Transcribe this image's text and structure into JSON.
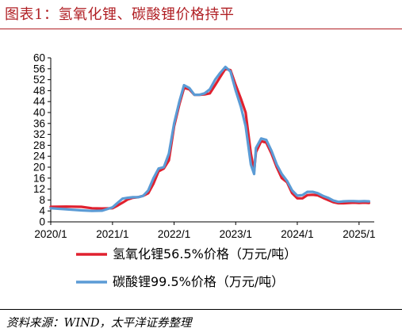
{
  "header": {
    "title": "图表1：氢氧化锂、碳酸锂价格持平"
  },
  "source": "资料来源：WIND，太平洋证券整理",
  "chart_data": {
    "type": "line",
    "title": "",
    "xlabel": "",
    "ylabel": "",
    "ylim": [
      0,
      60
    ],
    "y_ticks": [
      0,
      4,
      8,
      12,
      16,
      20,
      24,
      28,
      32,
      36,
      40,
      44,
      48,
      52,
      56,
      60
    ],
    "y_tick_labels": [
      "0",
      "4",
      "8",
      "12",
      "16",
      "20",
      "24",
      "28",
      "32",
      "36",
      "40",
      "44",
      "48",
      "52",
      "56",
      "60"
    ],
    "xlim": [
      "2020-01",
      "2025-04"
    ],
    "x_ticks": [
      "2020-01",
      "2021-01",
      "2022-01",
      "2023-01",
      "2024-01",
      "2025-01"
    ],
    "x_tick_labels": [
      "2020/1",
      "2021/1",
      "2022/1",
      "2023/1",
      "2024/1",
      "2025/1"
    ],
    "grid": false,
    "legend_position": "bottom",
    "series": [
      {
        "name": "氢氧化锂56.5%价格（万元/吨）",
        "color": "#e0212f",
        "points": [
          [
            "2020-01-01",
            5.5
          ],
          [
            "2020-04-01",
            5.6
          ],
          [
            "2020-07-01",
            5.5
          ],
          [
            "2020-09-01",
            5.0
          ],
          [
            "2020-11-01",
            4.9
          ],
          [
            "2021-01-01",
            5.0
          ],
          [
            "2021-02-01",
            6.0
          ],
          [
            "2021-03-01",
            7.0
          ],
          [
            "2021-04-01",
            8.2
          ],
          [
            "2021-05-01",
            8.8
          ],
          [
            "2021-06-01",
            9.0
          ],
          [
            "2021-07-01",
            9.5
          ],
          [
            "2021-08-01",
            10.5
          ],
          [
            "2021-09-01",
            14.0
          ],
          [
            "2021-10-01",
            18.5
          ],
          [
            "2021-11-01",
            19.5
          ],
          [
            "2021-12-01",
            22.5
          ],
          [
            "2022-01-01",
            35.0
          ],
          [
            "2022-02-01",
            43.0
          ],
          [
            "2022-03-01",
            49.0
          ],
          [
            "2022-04-01",
            48.5
          ],
          [
            "2022-05-01",
            46.5
          ],
          [
            "2022-06-01",
            46.5
          ],
          [
            "2022-07-01",
            46.6
          ],
          [
            "2022-08-01",
            47.0
          ],
          [
            "2022-09-01",
            50.0
          ],
          [
            "2022-10-01",
            53.0
          ],
          [
            "2022-11-01",
            56.0
          ],
          [
            "2022-12-01",
            55.5
          ],
          [
            "2023-01-01",
            50.0
          ],
          [
            "2023-02-01",
            45.0
          ],
          [
            "2023-03-01",
            40.0
          ],
          [
            "2023-04-01",
            25.0
          ],
          [
            "2023-04-20",
            18.5
          ],
          [
            "2023-05-01",
            25.5
          ],
          [
            "2023-06-01",
            29.5
          ],
          [
            "2023-07-01",
            29.0
          ],
          [
            "2023-08-01",
            25.0
          ],
          [
            "2023-09-01",
            20.0
          ],
          [
            "2023-10-01",
            16.0
          ],
          [
            "2023-11-01",
            14.5
          ],
          [
            "2023-12-01",
            10.5
          ],
          [
            "2024-01-01",
            8.6
          ],
          [
            "2024-02-01",
            8.6
          ],
          [
            "2024-03-01",
            9.8
          ],
          [
            "2024-04-01",
            9.9
          ],
          [
            "2024-05-01",
            9.7
          ],
          [
            "2024-06-01",
            8.8
          ],
          [
            "2024-07-01",
            8.0
          ],
          [
            "2024-08-01",
            7.2
          ],
          [
            "2024-09-01",
            6.8
          ],
          [
            "2024-10-01",
            6.8
          ],
          [
            "2024-11-01",
            6.9
          ],
          [
            "2024-12-01",
            7.0
          ],
          [
            "2025-01-01",
            6.9
          ],
          [
            "2025-02-01",
            7.0
          ],
          [
            "2025-03-01",
            6.9
          ]
        ]
      },
      {
        "name": "碳酸锂99.5%价格（万元/吨）",
        "color": "#5b9bd5",
        "points": [
          [
            "2020-01-01",
            5.0
          ],
          [
            "2020-04-01",
            4.6
          ],
          [
            "2020-07-01",
            4.2
          ],
          [
            "2020-09-01",
            4.0
          ],
          [
            "2020-11-01",
            4.1
          ],
          [
            "2021-01-01",
            5.3
          ],
          [
            "2021-02-01",
            7.0
          ],
          [
            "2021-03-01",
            8.5
          ],
          [
            "2021-04-01",
            8.8
          ],
          [
            "2021-05-01",
            9.0
          ],
          [
            "2021-06-01",
            9.0
          ],
          [
            "2021-07-01",
            9.5
          ],
          [
            "2021-08-01",
            11.5
          ],
          [
            "2021-09-01",
            16.0
          ],
          [
            "2021-10-01",
            19.5
          ],
          [
            "2021-11-01",
            20.0
          ],
          [
            "2021-12-01",
            25.0
          ],
          [
            "2022-01-01",
            36.0
          ],
          [
            "2022-02-01",
            44.0
          ],
          [
            "2022-03-01",
            50.0
          ],
          [
            "2022-04-01",
            49.0
          ],
          [
            "2022-05-01",
            46.5
          ],
          [
            "2022-06-01",
            46.5
          ],
          [
            "2022-07-01",
            47.0
          ],
          [
            "2022-08-01",
            48.5
          ],
          [
            "2022-09-01",
            52.0
          ],
          [
            "2022-10-01",
            54.5
          ],
          [
            "2022-11-01",
            56.7
          ],
          [
            "2022-12-01",
            55.0
          ],
          [
            "2023-01-01",
            48.0
          ],
          [
            "2023-02-01",
            42.0
          ],
          [
            "2023-03-01",
            35.0
          ],
          [
            "2023-04-01",
            21.0
          ],
          [
            "2023-04-20",
            17.5
          ],
          [
            "2023-05-01",
            27.0
          ],
          [
            "2023-06-01",
            30.5
          ],
          [
            "2023-07-01",
            30.0
          ],
          [
            "2023-08-01",
            26.0
          ],
          [
            "2023-09-01",
            21.0
          ],
          [
            "2023-10-01",
            17.5
          ],
          [
            "2023-11-01",
            15.0
          ],
          [
            "2023-12-01",
            11.5
          ],
          [
            "2024-01-01",
            9.6
          ],
          [
            "2024-02-01",
            9.8
          ],
          [
            "2024-03-01",
            11.0
          ],
          [
            "2024-04-01",
            11.0
          ],
          [
            "2024-05-01",
            10.5
          ],
          [
            "2024-06-01",
            9.5
          ],
          [
            "2024-07-01",
            8.8
          ],
          [
            "2024-08-01",
            7.8
          ],
          [
            "2024-09-01",
            7.3
          ],
          [
            "2024-10-01",
            7.5
          ],
          [
            "2024-11-01",
            7.6
          ],
          [
            "2024-12-01",
            7.6
          ],
          [
            "2025-01-01",
            7.5
          ],
          [
            "2025-02-01",
            7.6
          ],
          [
            "2025-03-01",
            7.5
          ]
        ]
      }
    ]
  }
}
